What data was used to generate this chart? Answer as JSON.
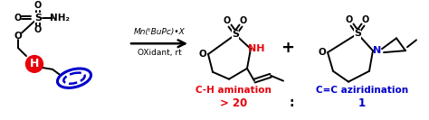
{
  "bg_color": "#ffffff",
  "fig_width": 4.74,
  "fig_height": 1.33,
  "dpi": 100,
  "arrow_text_line1": "Mn(ᵗBuPc)•X",
  "arrow_text_line2": "OXidant, rt",
  "label_ch_amination": "C-H amination",
  "label_ratio_left": "> 20",
  "label_colon": ":",
  "label_ratio_right": "1",
  "label_cc_aziridination": "C=C aziridination",
  "color_red": "#e8000a",
  "color_blue": "#0000cc",
  "color_black": "#111111"
}
